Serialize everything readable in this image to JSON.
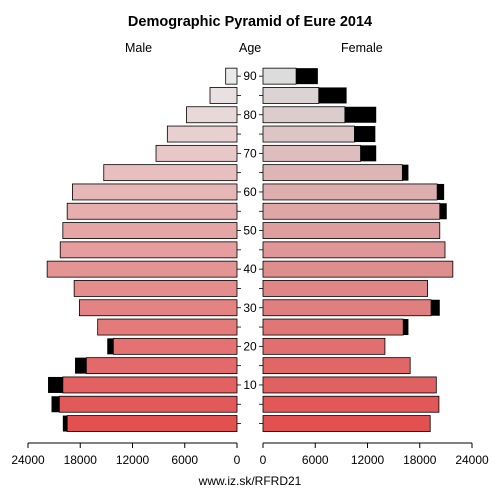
{
  "chart_data": {
    "type": "bar",
    "title": "Demographic Pyramid of Eure 2014",
    "left_label": "Male",
    "center_label": "Age",
    "right_label": "Female",
    "age_ticks": [
      "10",
      "20",
      "30",
      "40",
      "50",
      "60",
      "70",
      "80",
      "90"
    ],
    "x_ticks": [
      "24000",
      "18000",
      "12000",
      "6000",
      "0"
    ],
    "x_ticks_right": [
      "0",
      "6000",
      "12000",
      "18000",
      "24000"
    ],
    "xlim": [
      0,
      24000
    ],
    "age_groups": [
      "0-4",
      "5-9",
      "10-14",
      "15-19",
      "20-24",
      "25-29",
      "30-34",
      "35-39",
      "40-44",
      "45-49",
      "50-54",
      "55-59",
      "60-64",
      "65-69",
      "70-74",
      "75-79",
      "80-84",
      "85-89",
      "90-94"
    ],
    "series": [
      {
        "name": "Male",
        "values": [
          19500,
          20400,
          20000,
          17300,
          14200,
          16000,
          18100,
          18700,
          21800,
          20300,
          20000,
          19500,
          18900,
          15300,
          9300,
          8000,
          5800,
          3100,
          1300
        ],
        "excess": [
          500,
          900,
          1700,
          1300,
          700,
          0,
          0,
          0,
          0,
          0,
          0,
          0,
          0,
          0,
          0,
          0,
          0,
          0,
          0
        ]
      },
      {
        "name": "Female",
        "values": [
          19200,
          20200,
          19900,
          16900,
          14000,
          16100,
          19300,
          18900,
          21800,
          20900,
          20300,
          20300,
          20000,
          16000,
          11200,
          10500,
          9400,
          6400,
          3800
        ],
        "excess": [
          0,
          0,
          0,
          0,
          0,
          600,
          1000,
          0,
          0,
          0,
          0,
          800,
          800,
          700,
          1800,
          2400,
          3600,
          3200,
          2500
        ]
      }
    ]
  },
  "footer": "www.iz.sk/RFRD21"
}
